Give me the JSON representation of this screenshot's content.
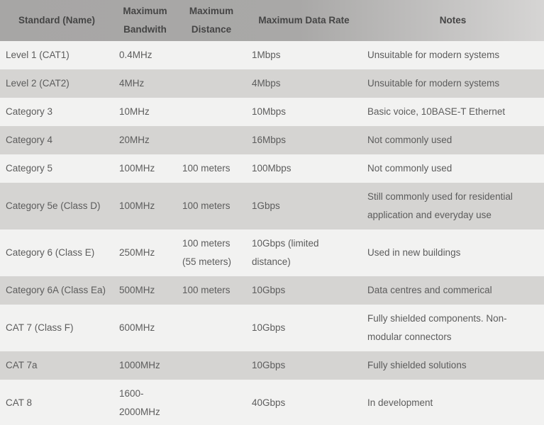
{
  "colors": {
    "header_bg_left": "#a7a6a5",
    "header_bg_right": "#d6d5d4",
    "header_text": "#454545",
    "row_light": "#f2f2f1",
    "row_dark": "#d5d4d2",
    "body_text": "#5c5c5c"
  },
  "table": {
    "columns": [
      {
        "label": "Standard (Name)"
      },
      {
        "label": "Maximum Bandwith"
      },
      {
        "label": "Maximum Distance"
      },
      {
        "label": "Maximum Data Rate"
      },
      {
        "label": "Notes"
      }
    ],
    "rows": [
      {
        "standard": "Level 1 (CAT1)",
        "bandwidth": "0.4MHz",
        "distance": "",
        "data_rate": "1Mbps",
        "notes": "Unsuitable for modern systems"
      },
      {
        "standard": "Level 2 (CAT2)",
        "bandwidth": "4MHz",
        "distance": "",
        "data_rate": "4Mbps",
        "notes": "Unsuitable for modern systems"
      },
      {
        "standard": "Category 3",
        "bandwidth": "10MHz",
        "distance": "",
        "data_rate": "10Mbps",
        "notes": "Basic voice, 10BASE-T Ethernet"
      },
      {
        "standard": "Category 4",
        "bandwidth": "20MHz",
        "distance": "",
        "data_rate": "16Mbps",
        "notes": "Not commonly used"
      },
      {
        "standard": "Category 5",
        "bandwidth": "100MHz",
        "distance": "100 meters",
        "data_rate": "100Mbps",
        "notes": "Not commonly used"
      },
      {
        "standard": "Category 5e (Class D)",
        "bandwidth": "100MHz",
        "distance": "100 meters",
        "data_rate": "1Gbps",
        "notes": "Still commonly used for residential application and everyday use"
      },
      {
        "standard": "Category 6 (Class E)",
        "bandwidth": "250MHz",
        "distance": "100 meters\n(55 meters)",
        "data_rate": "10Gbps (limited\ndistance)",
        "notes": "Used in new buildings"
      },
      {
        "standard": "Category 6A (Class Ea)",
        "bandwidth": "500MHz",
        "distance": "100 meters",
        "data_rate": "10Gbps",
        "notes": "Data centres and commerical"
      },
      {
        "standard": "CAT 7 (Class F)",
        "bandwidth": "600MHz",
        "distance": "",
        "data_rate": "10Gbps",
        "notes": "Fully shielded components. Non-modular connectors"
      },
      {
        "standard": "CAT 7a",
        "bandwidth": "1000MHz",
        "distance": "",
        "data_rate": "10Gbps",
        "notes": "Fully shielded solutions"
      },
      {
        "standard": "CAT 8",
        "bandwidth": "1600-\n2000MHz",
        "distance": "",
        "data_rate": "40Gbps",
        "notes": "In development"
      }
    ]
  }
}
